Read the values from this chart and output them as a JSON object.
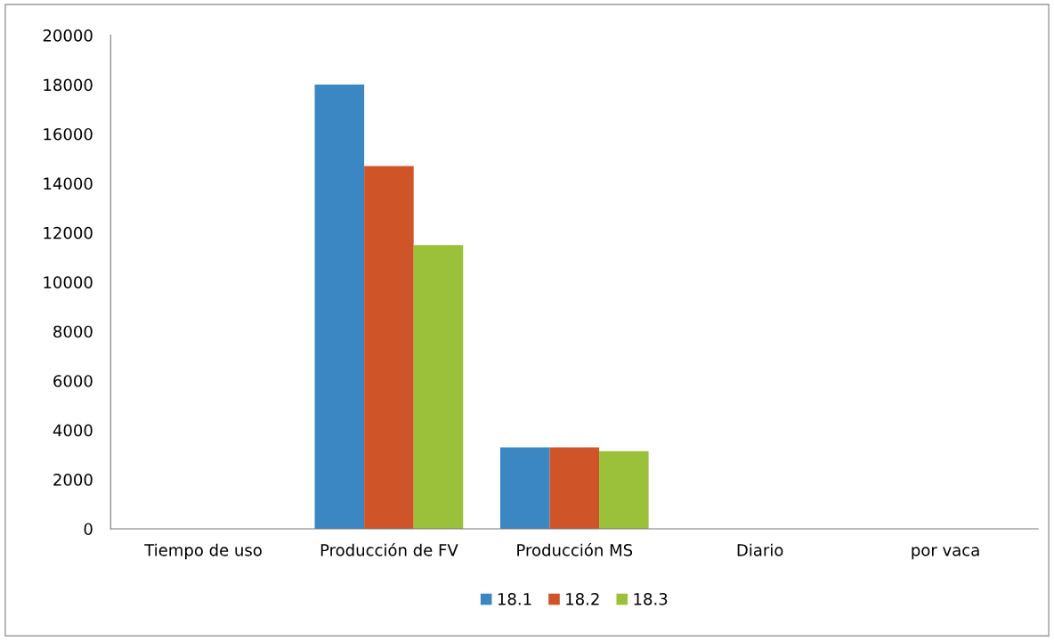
{
  "chart_data": {
    "type": "bar",
    "categories": [
      "Tiempo de uso",
      "Producción de FV",
      "Producción MS",
      "Diario",
      "por vaca"
    ],
    "series": [
      {
        "name": "18.1",
        "color": "#3a87c4",
        "values": [
          null,
          18000,
          3300,
          null,
          null
        ]
      },
      {
        "name": "18.2",
        "color": "#cf5428",
        "values": [
          null,
          14700,
          3300,
          null,
          null
        ]
      },
      {
        "name": "18.3",
        "color": "#9bc13a",
        "values": [
          null,
          11500,
          3150,
          null,
          null
        ]
      }
    ],
    "ylim": [
      0,
      20000
    ],
    "yticks": [
      0,
      2000,
      4000,
      6000,
      8000,
      10000,
      12000,
      14000,
      16000,
      18000,
      20000
    ],
    "grid": false,
    "legend": "bottom"
  }
}
